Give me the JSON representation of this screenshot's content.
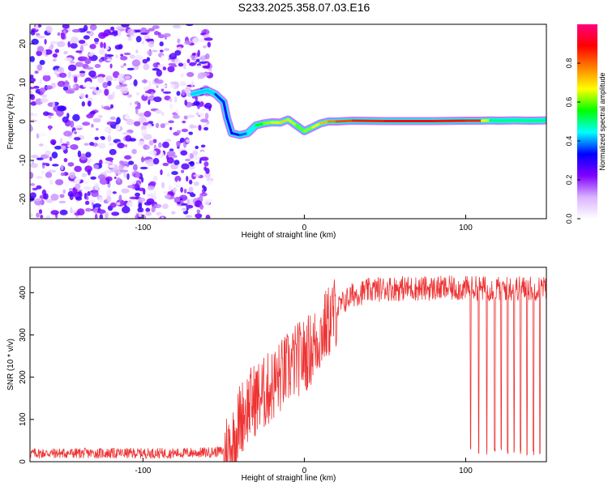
{
  "chart_data": [
    {
      "type": "heatmap",
      "title": "S233.2025.358.07.03.E16",
      "xlabel": "Height of straight line (km)",
      "ylabel": "Frequency (Hz)",
      "xlim": [
        -170,
        150
      ],
      "ylim": [
        -25,
        25
      ],
      "xticks": [
        -100,
        0,
        100
      ],
      "yticks": [
        -20,
        -10,
        0,
        10,
        20
      ],
      "xtick_labels": [
        "-100",
        "0",
        "100"
      ],
      "ytick_labels": [
        "-20",
        "-10",
        "0",
        "10",
        "20"
      ],
      "colorbar": {
        "label": "Normalized spectral amplitude",
        "range": [
          0,
          1
        ],
        "ticks": [
          0.0,
          0.2,
          0.4,
          0.6,
          0.8
        ],
        "tick_labels": [
          "0.0",
          "0.2",
          "0.4",
          "0.6",
          "0.8"
        ],
        "colormap": [
          "#ffffff",
          "#d9b3ff",
          "#7f00ff",
          "#0000ff",
          "#00ffff",
          "#00ff00",
          "#ffff00",
          "#ff8000",
          "#ff0000",
          "#ff0080"
        ]
      },
      "noise_region_x": [
        -170,
        -58
      ],
      "noise_amplitude": 0.3,
      "ridge": {
        "x": [
          -70,
          -60,
          -55,
          -50,
          -48,
          -45,
          -40,
          -35,
          -30,
          -25,
          -20,
          -15,
          -10,
          -5,
          0,
          5,
          10,
          15,
          20,
          30,
          50,
          80,
          100,
          110,
          115,
          120,
          130,
          140,
          150
        ],
        "freq": [
          7,
          8,
          7,
          5,
          1,
          -3,
          -3.5,
          -3,
          -1,
          -0.5,
          -0.2,
          -0.3,
          0.5,
          -1,
          -2.5,
          -1.5,
          -0.5,
          0,
          0,
          0.2,
          0.1,
          0.1,
          0.2,
          0.2,
          0.3,
          0.2,
          0.3,
          0.2,
          0.3
        ],
        "amplitude": [
          0.4,
          0.45,
          0.4,
          0.3,
          0.3,
          0.3,
          0.35,
          0.4,
          0.5,
          0.6,
          0.65,
          0.7,
          0.7,
          0.6,
          0.6,
          0.65,
          0.7,
          0.75,
          0.8,
          0.85,
          0.88,
          0.88,
          0.87,
          0.85,
          0.5,
          0.5,
          0.5,
          0.5,
          0.5
        ]
      }
    },
    {
      "type": "line",
      "title": "",
      "xlabel": "Height of straight line (km)",
      "ylabel": "SNR (10 * v/v)",
      "xlim": [
        -170,
        150
      ],
      "ylim": [
        0,
        460
      ],
      "xticks": [
        -100,
        0,
        100
      ],
      "yticks": [
        0,
        100,
        200,
        300,
        400
      ],
      "xtick_labels": [
        "-100",
        "0",
        "100"
      ],
      "ytick_labels": [
        "0",
        "100",
        "200",
        "300",
        "400"
      ],
      "color": "#ee3333",
      "series": [
        {
          "name": "SNR",
          "x": [
            -170,
            -150,
            -120,
            -100,
            -80,
            -60,
            -50,
            -45,
            -42,
            -40,
            -35,
            -30,
            -25,
            -20,
            -15,
            -10,
            -5,
            0,
            5,
            10,
            15,
            20,
            25,
            30,
            40,
            50,
            60,
            70,
            80,
            90,
            100,
            110,
            120,
            130,
            140,
            150
          ],
          "y": [
            20,
            20,
            20,
            20,
            20,
            22,
            25,
            40,
            70,
            100,
            130,
            150,
            160,
            180,
            200,
            220,
            240,
            250,
            270,
            300,
            330,
            360,
            380,
            395,
            405,
            410,
            410,
            410,
            410,
            410,
            410,
            410,
            410,
            410,
            410,
            410
          ]
        }
      ],
      "dropouts_x": [
        103,
        108,
        113,
        118,
        122,
        126,
        130,
        134,
        138,
        142,
        146
      ]
    }
  ]
}
